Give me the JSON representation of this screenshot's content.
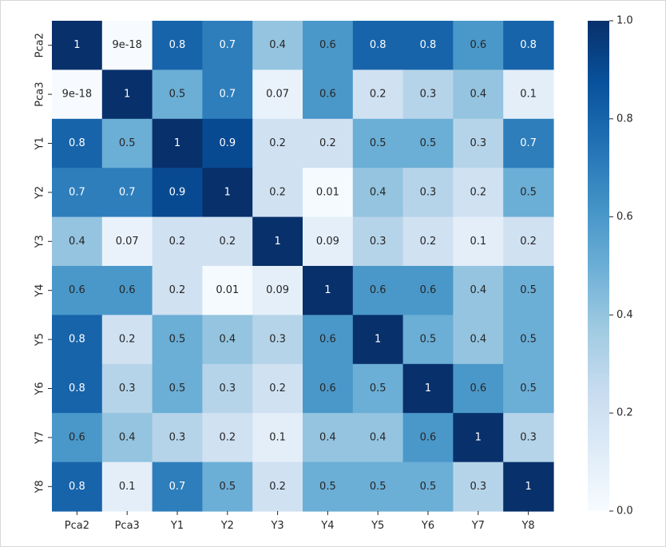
{
  "chart_data": {
    "type": "heatmap",
    "title": "",
    "xlabel": "",
    "ylabel": "",
    "rows": [
      "Pca2",
      "Pca3",
      "Y1",
      "Y2",
      "Y3",
      "Y4",
      "Y5",
      "Y6",
      "Y7",
      "Y8"
    ],
    "columns": [
      "Pca2",
      "Pca3",
      "Y1",
      "Y2",
      "Y3",
      "Y4",
      "Y5",
      "Y6",
      "Y7",
      "Y8"
    ],
    "values": [
      [
        1,
        9e-18,
        0.8,
        0.7,
        0.4,
        0.6,
        0.8,
        0.8,
        0.6,
        0.8
      ],
      [
        9e-18,
        1,
        0.5,
        0.7,
        0.07,
        0.6,
        0.2,
        0.3,
        0.4,
        0.1
      ],
      [
        0.8,
        0.5,
        1,
        0.9,
        0.2,
        0.2,
        0.5,
        0.5,
        0.3,
        0.7
      ],
      [
        0.7,
        0.7,
        0.9,
        1,
        0.2,
        0.01,
        0.4,
        0.3,
        0.2,
        0.5
      ],
      [
        0.4,
        0.07,
        0.2,
        0.2,
        1,
        0.09,
        0.3,
        0.2,
        0.1,
        0.2
      ],
      [
        0.6,
        0.6,
        0.2,
        0.01,
        0.09,
        1,
        0.6,
        0.6,
        0.4,
        0.5
      ],
      [
        0.8,
        0.2,
        0.5,
        0.4,
        0.3,
        0.6,
        1,
        0.5,
        0.4,
        0.5
      ],
      [
        0.8,
        0.3,
        0.5,
        0.3,
        0.2,
        0.6,
        0.5,
        1,
        0.6,
        0.5
      ],
      [
        0.6,
        0.4,
        0.3,
        0.2,
        0.1,
        0.4,
        0.4,
        0.6,
        1,
        0.3
      ],
      [
        0.8,
        0.1,
        0.7,
        0.5,
        0.2,
        0.5,
        0.5,
        0.5,
        0.3,
        1
      ]
    ],
    "annotations": [
      [
        "1",
        "9e-18",
        "0.8",
        "0.7",
        "0.4",
        "0.6",
        "0.8",
        "0.8",
        "0.6",
        "0.8"
      ],
      [
        "9e-18",
        "1",
        "0.5",
        "0.7",
        "0.07",
        "0.6",
        "0.2",
        "0.3",
        "0.4",
        "0.1"
      ],
      [
        "0.8",
        "0.5",
        "1",
        "0.9",
        "0.2",
        "0.2",
        "0.5",
        "0.5",
        "0.3",
        "0.7"
      ],
      [
        "0.7",
        "0.7",
        "0.9",
        "1",
        "0.2",
        "0.01",
        "0.4",
        "0.3",
        "0.2",
        "0.5"
      ],
      [
        "0.4",
        "0.07",
        "0.2",
        "0.2",
        "1",
        "0.09",
        "0.3",
        "0.2",
        "0.1",
        "0.2"
      ],
      [
        "0.6",
        "0.6",
        "0.2",
        "0.01",
        "0.09",
        "1",
        "0.6",
        "0.6",
        "0.4",
        "0.5"
      ],
      [
        "0.8",
        "0.2",
        "0.5",
        "0.4",
        "0.3",
        "0.6",
        "1",
        "0.5",
        "0.4",
        "0.5"
      ],
      [
        "0.8",
        "0.3",
        "0.5",
        "0.3",
        "0.2",
        "0.6",
        "0.5",
        "1",
        "0.6",
        "0.5"
      ],
      [
        "0.6",
        "0.4",
        "0.3",
        "0.2",
        "0.1",
        "0.4",
        "0.4",
        "0.6",
        "1",
        "0.3"
      ],
      [
        "0.8",
        "0.1",
        "0.7",
        "0.5",
        "0.2",
        "0.5",
        "0.5",
        "0.5",
        "0.3",
        "1"
      ]
    ],
    "colormap": "Blues",
    "colormap_stops": [
      "#f7fbff",
      "#deebf7",
      "#c6dbef",
      "#9ecae1",
      "#6baed6",
      "#4292c6",
      "#2171b5",
      "#08519c",
      "#08306b"
    ],
    "vmin": 0,
    "vmax": 1,
    "colorbar": {
      "ticks": [
        0.0,
        0.2,
        0.4,
        0.6,
        0.8,
        1.0
      ],
      "tick_labels": [
        "0.0",
        "0.2",
        "0.4",
        "0.6",
        "0.8",
        "1.0"
      ],
      "placement": "right"
    },
    "grid": false
  }
}
